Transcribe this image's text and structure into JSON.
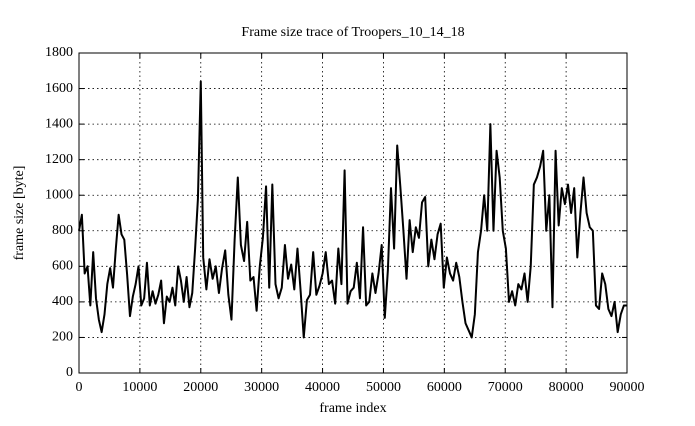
{
  "chart_data": {
    "type": "line",
    "title": "Frame size trace of Troopers_10_14_18",
    "x_label": "frame index",
    "y_label": "frame size [byte]",
    "xlim": [
      0,
      90000
    ],
    "ylim": [
      0,
      1800
    ],
    "xticks": [
      0,
      10000,
      20000,
      30000,
      40000,
      50000,
      60000,
      70000,
      80000,
      90000
    ],
    "yticks": [
      0,
      200,
      400,
      600,
      800,
      1000,
      1200,
      1400,
      1600,
      1800
    ],
    "grid": true,
    "x": [
      0,
      470,
      930,
      1400,
      1860,
      2330,
      2790,
      3260,
      3720,
      4190,
      4650,
      5120,
      5580,
      6050,
      6510,
      6980,
      7440,
      7910,
      8370,
      8840,
      9300,
      9770,
      10230,
      10700,
      11160,
      11630,
      12090,
      12560,
      13020,
      13490,
      13950,
      14420,
      14880,
      15350,
      15810,
      16280,
      16740,
      17210,
      17670,
      18140,
      18600,
      19070,
      19530,
      20000,
      20400,
      20920,
      21430,
      21950,
      22460,
      22980,
      23500,
      24010,
      24530,
      25040,
      25560,
      26080,
      26590,
      27110,
      27620,
      28140,
      28660,
      29170,
      29690,
      30200,
      30720,
      31240,
      31750,
      32270,
      32780,
      33300,
      33820,
      34330,
      34850,
      35360,
      35880,
      36400,
      36910,
      37430,
      37940,
      38460,
      38980,
      39490,
      40010,
      40520,
      41040,
      41560,
      42070,
      42590,
      43100,
      43620,
      44100,
      44610,
      45120,
      45630,
      46140,
      46650,
      47160,
      47670,
      48180,
      48690,
      49200,
      49710,
      50220,
      50730,
      51240,
      51750,
      52260,
      52770,
      53280,
      53790,
      54300,
      54810,
      55320,
      55830,
      56340,
      56850,
      57360,
      57870,
      58380,
      58890,
      59400,
      59910,
      60420,
      60930,
      61440,
      61950,
      62460,
      62970,
      63480,
      63990,
      64500,
      65010,
      65520,
      66030,
      66540,
      67050,
      67560,
      68070,
      68580,
      69090,
      69600,
      70110,
      70620,
      71130,
      71640,
      72150,
      72660,
      73170,
      73680,
      74190,
      74700,
      75210,
      75720,
      76230,
      76740,
      77250,
      77760,
      78270,
      78780,
      79290,
      79800,
      80310,
      80820,
      81330,
      81840,
      82350,
      82860,
      83370,
      83880,
      84390,
      84900,
      85410,
      85920,
      86430,
      86940,
      87450,
      87960,
      88470,
      88980,
      89490,
      90000
    ],
    "series": [
      {
        "color": "#000000",
        "values": [
          800,
          890,
          560,
          600,
          380,
          680,
          420,
          300,
          230,
          330,
          500,
          590,
          480,
          700,
          890,
          780,
          750,
          550,
          320,
          430,
          500,
          600,
          380,
          420,
          620,
          380,
          460,
          390,
          440,
          520,
          280,
          430,
          400,
          480,
          380,
          600,
          520,
          400,
          540,
          370,
          450,
          700,
          980,
          1640,
          650,
          470,
          640,
          530,
          600,
          450,
          590,
          690,
          440,
          300,
          750,
          1100,
          720,
          630,
          850,
          520,
          540,
          350,
          600,
          760,
          1050,
          480,
          1060,
          500,
          420,
          480,
          720,
          530,
          610,
          470,
          700,
          460,
          200,
          410,
          440,
          680,
          440,
          490,
          560,
          680,
          500,
          520,
          390,
          700,
          500,
          1140,
          390,
          460,
          480,
          620,
          420,
          820,
          380,
          400,
          560,
          450,
          560,
          720,
          310,
          580,
          1040,
          700,
          1280,
          1050,
          800,
          530,
          860,
          680,
          820,
          760,
          960,
          990,
          600,
          750,
          640,
          780,
          840,
          480,
          650,
          560,
          520,
          620,
          540,
          400,
          280,
          240,
          200,
          330,
          680,
          800,
          1000,
          800,
          1400,
          800,
          1250,
          1100,
          800,
          700,
          400,
          460,
          380,
          500,
          470,
          560,
          400,
          600,
          1060,
          1100,
          1160,
          1250,
          800,
          1000,
          370,
          1250,
          830,
          1040,
          950,
          1060,
          900,
          1040,
          650,
          900,
          1100,
          900,
          820,
          800,
          380,
          360,
          560,
          500,
          360,
          320,
          400,
          230,
          330,
          380,
          380
        ]
      }
    ]
  }
}
